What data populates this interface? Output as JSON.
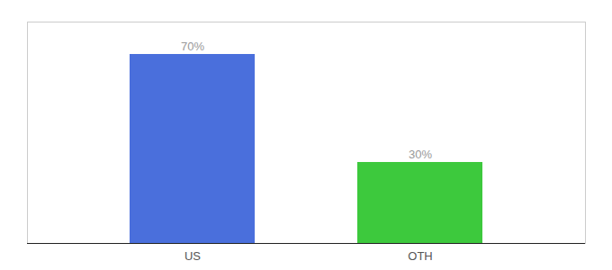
{
  "chart_data": {
    "type": "bar",
    "categories": [
      "US",
      "OTH"
    ],
    "values": [
      70,
      30
    ],
    "value_labels": [
      "70%",
      "30%"
    ],
    "colors": [
      "#4a6fdc",
      "#3dc93d"
    ],
    "ylim": [
      0,
      82
    ],
    "data_labels": true,
    "tick_labels": "x"
  }
}
